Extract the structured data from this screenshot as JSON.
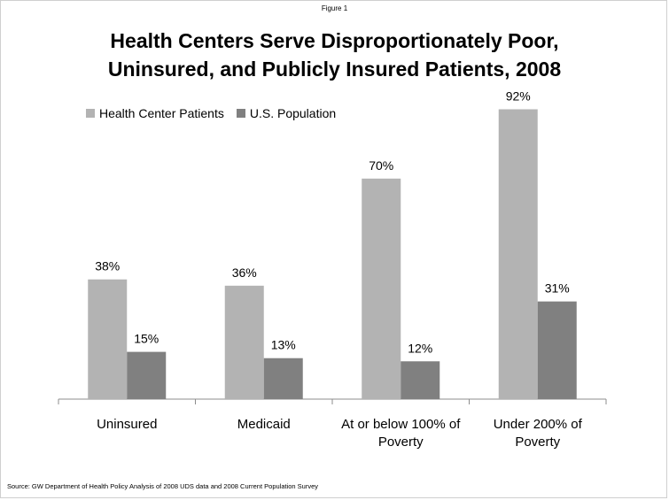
{
  "figure_label": "Figure 1",
  "title": "Health Centers Serve Disproportionately Poor,\nUninsured, and Publicly Insured Patients, 2008",
  "source": "Source: GW Department of Health Policy Analysis of 2008 UDS data and 2008 Current Population Survey",
  "colors": {
    "health_center": "#b3b3b3",
    "us_population": "#808080"
  },
  "chart_data": {
    "type": "bar",
    "title": "Health Centers Serve Disproportionately Poor, Uninsured, and Publicly Insured Patients, 2008",
    "xlabel": "",
    "ylabel": "",
    "ylim": [
      0,
      100
    ],
    "grid": false,
    "legend_position": "top-left",
    "categories": [
      "Uninsured",
      "Medicaid",
      "At or below 100% of Poverty",
      "Under 200% of Poverty"
    ],
    "series": [
      {
        "name": "Health Center Patients",
        "values": [
          38,
          36,
          70,
          92
        ],
        "labels": [
          "38%",
          "36%",
          "70%",
          "92%"
        ]
      },
      {
        "name": "U.S. Population",
        "values": [
          15,
          13,
          12,
          31
        ],
        "labels": [
          "15%",
          "13%",
          "12%",
          "31%"
        ]
      }
    ]
  }
}
